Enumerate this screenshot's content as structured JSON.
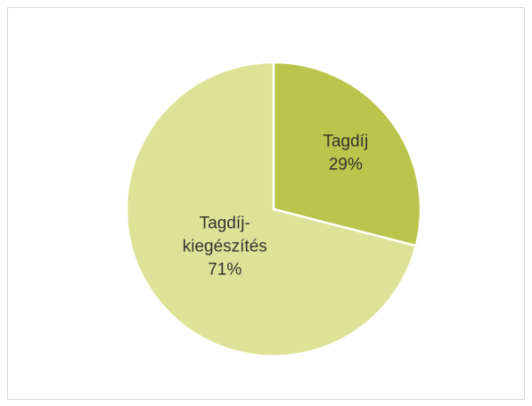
{
  "chart_data": {
    "type": "pie",
    "categories": [
      "Tagdíj",
      "Tagdíj-kiegészítés"
    ],
    "values": [
      29,
      71
    ],
    "value_labels": [
      "29%",
      "71%"
    ],
    "colors": [
      "#b9c54b",
      "#dde396"
    ]
  }
}
